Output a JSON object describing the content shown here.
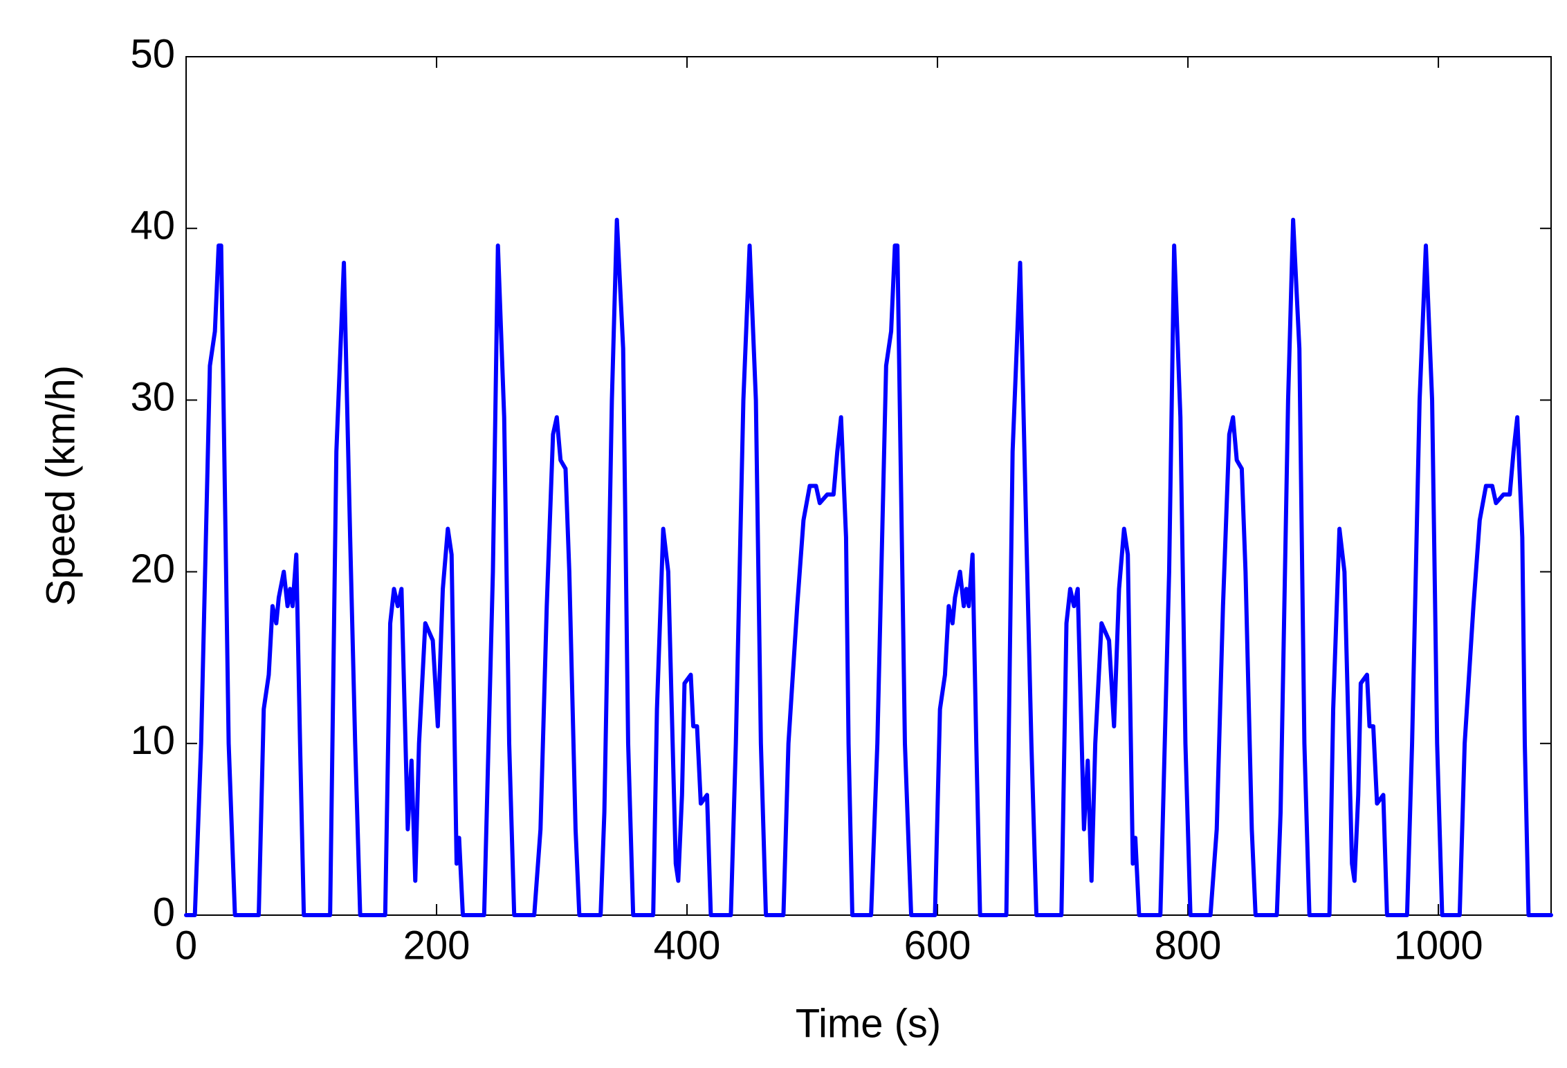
{
  "chart_data": {
    "type": "line",
    "x_label": "Time (s)",
    "y_label": "Speed (km/h)",
    "xlim": [
      0,
      1090
    ],
    "ylim": [
      0,
      50
    ],
    "xticks": [
      0,
      200,
      400,
      600,
      800,
      1000
    ],
    "yticks": [
      0,
      10,
      20,
      30,
      40,
      50
    ],
    "grid": false,
    "x": [
      0,
      7,
      12,
      19,
      23,
      26,
      28,
      34,
      39,
      58,
      62,
      66,
      69,
      72,
      74,
      78,
      81,
      83,
      85,
      88,
      91,
      94,
      115,
      120,
      126,
      131,
      135,
      139,
      159,
      163,
      166,
      169,
      172,
      177,
      180,
      183,
      186,
      191,
      197,
      201,
      205,
      209,
      212,
      216,
      218,
      221,
      238,
      245,
      249,
      254,
      258,
      262,
      278,
      283,
      288,
      293,
      296,
      299,
      303,
      306,
      311,
      314,
      331,
      334,
      340,
      344,
      349,
      353,
      357,
      373,
      376,
      381,
      385,
      391,
      393,
      396,
      398,
      403,
      405,
      408,
      411,
      416,
      419,
      435,
      439,
      445,
      450,
      455,
      459,
      463,
      477,
      481,
      488,
      493,
      498,
      503,
      506,
      512,
      517,
      520,
      523,
      527,
      529,
      532,
      547,
      552,
      559,
      563,
      566,
      568,
      574,
      579,
      598,
      602,
      606,
      609,
      612,
      614,
      618,
      621,
      623,
      625,
      628,
      631,
      634,
      655,
      660,
      666,
      671,
      675,
      679,
      699,
      703,
      706,
      709,
      712,
      717,
      720,
      723,
      726,
      731,
      737,
      741,
      745,
      749,
      752,
      756,
      758,
      761,
      778,
      785,
      789,
      794,
      798,
      802,
      818,
      823,
      828,
      833,
      836,
      839,
      843,
      846,
      851,
      854,
      871,
      874,
      880,
      884,
      889,
      893,
      897,
      913,
      916,
      921,
      925,
      931,
      933,
      936,
      938,
      943,
      945,
      948,
      951,
      956,
      959,
      975,
      979,
      985,
      990,
      995,
      999,
      1003,
      1017,
      1021,
      1028,
      1033,
      1038,
      1043,
      1046,
      1052,
      1057,
      1060,
      1063,
      1067,
      1069,
      1072,
      1090
    ],
    "series": [
      {
        "color": "#0000ff",
        "values": [
          0,
          0,
          10,
          32,
          34,
          39,
          39,
          10,
          0,
          0,
          12,
          14,
          18,
          17,
          18.5,
          20,
          18,
          19,
          18,
          21,
          10,
          0,
          0,
          27,
          38,
          22,
          10,
          0,
          0,
          17,
          19,
          18,
          19,
          5,
          9,
          2,
          10,
          17,
          16,
          11,
          19,
          22.5,
          21,
          3,
          4.5,
          0,
          0,
          20,
          39,
          29,
          10,
          0,
          0,
          5,
          18,
          28,
          29,
          26.5,
          26,
          20,
          5,
          0,
          0,
          6,
          30,
          40.5,
          33,
          10,
          0,
          0,
          12,
          22.5,
          20,
          3,
          2,
          7,
          13.5,
          14,
          11,
          11,
          6.5,
          7,
          0,
          0,
          10,
          30,
          39,
          30,
          10,
          0,
          0,
          10,
          18,
          23,
          25,
          25,
          24,
          24.5,
          24.5,
          27,
          29,
          22,
          10,
          0,
          0,
          10,
          32,
          34,
          39,
          39,
          10,
          0,
          0,
          12,
          14,
          18,
          17,
          18.5,
          20,
          18,
          19,
          18,
          21,
          10,
          0,
          0,
          27,
          38,
          22,
          10,
          0,
          0,
          17,
          19,
          18,
          19,
          5,
          9,
          2,
          10,
          17,
          16,
          11,
          19,
          22.5,
          21,
          3,
          4.5,
          0,
          0,
          20,
          39,
          29,
          10,
          0,
          0,
          5,
          18,
          28,
          29,
          26.5,
          26,
          20,
          5,
          0,
          0,
          6,
          30,
          40.5,
          33,
          10,
          0,
          0,
          12,
          22.5,
          20,
          3,
          2,
          7,
          13.5,
          14,
          11,
          11,
          6.5,
          7,
          0,
          0,
          10,
          30,
          39,
          30,
          10,
          0,
          0,
          10,
          18,
          23,
          25,
          25,
          24,
          24.5,
          24.5,
          27,
          29,
          22,
          10,
          0,
          0
        ]
      }
    ]
  }
}
